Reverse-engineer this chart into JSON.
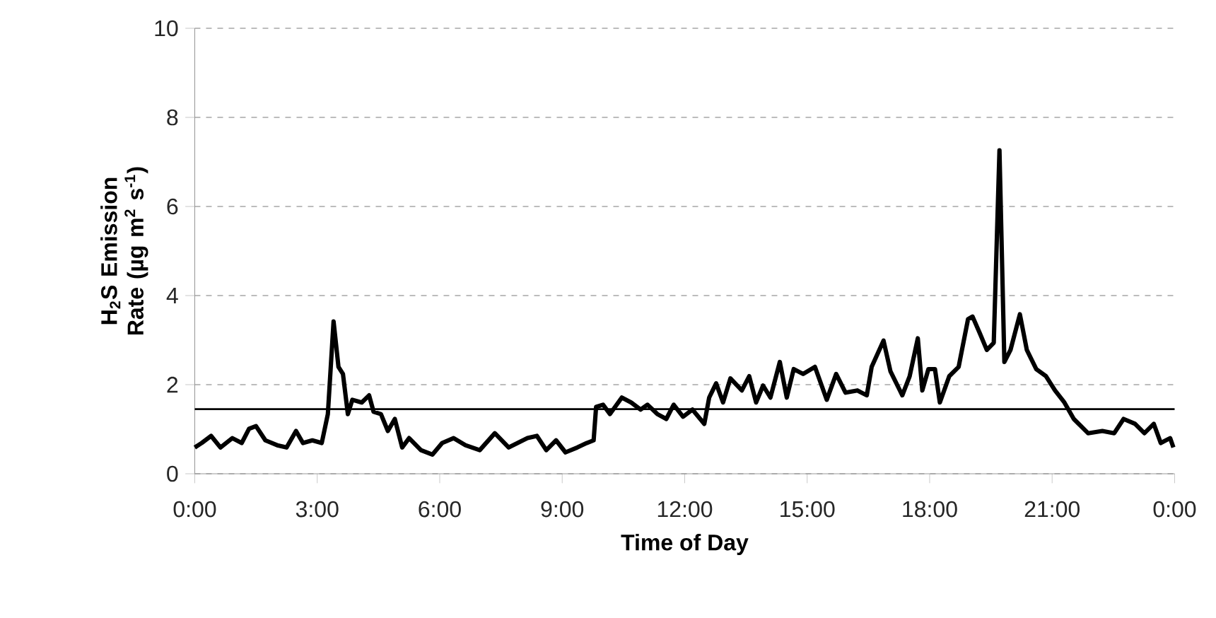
{
  "chart_data": {
    "type": "line",
    "xlabel": "Time of Day",
    "ylabel": "H$_{2}$S Emission Rate (µg m$^{2}$ s$^{-1}$)",
    "xlim": [
      0,
      24
    ],
    "ylim": [
      0,
      10
    ],
    "xticks": [
      {
        "value": 0,
        "label": "0:00"
      },
      {
        "value": 3,
        "label": "3:00"
      },
      {
        "value": 6,
        "label": "6:00"
      },
      {
        "value": 9,
        "label": "9:00"
      },
      {
        "value": 12,
        "label": "12:00"
      },
      {
        "value": 15,
        "label": "15:00"
      },
      {
        "value": 18,
        "label": "18:00"
      },
      {
        "value": 21,
        "label": "21:00"
      },
      {
        "value": 24,
        "label": "0:00"
      }
    ],
    "yticks": [
      0,
      2,
      4,
      6,
      8,
      10
    ],
    "grid": "y",
    "marker": "none",
    "line_style": "solid",
    "ref_lines": [
      {
        "axis": "y",
        "value": 1.45,
        "color": "#000000"
      }
    ],
    "series": [
      {
        "color": "#000000",
        "x": [
          0,
          0.17,
          0.4,
          0.63,
          0.92,
          1.15,
          1.33,
          1.5,
          1.73,
          2.02,
          2.25,
          2.48,
          2.65,
          2.88,
          3.11,
          3.26,
          3.4,
          3.52,
          3.63,
          3.75,
          3.86,
          4.09,
          4.27,
          4.38,
          4.56,
          4.73,
          4.9,
          5.08,
          5.25,
          5.54,
          5.82,
          6.06,
          6.34,
          6.63,
          6.98,
          7.35,
          7.69,
          8.15,
          8.38,
          8.61,
          8.85,
          9.08,
          9.37,
          9.6,
          9.77,
          9.83,
          10.0,
          10.17,
          10.46,
          10.69,
          10.92,
          11.09,
          11.33,
          11.55,
          11.73,
          11.96,
          12.19,
          12.48,
          12.6,
          12.77,
          12.94,
          13.12,
          13.4,
          13.58,
          13.75,
          13.92,
          14.1,
          14.33,
          14.5,
          14.67,
          14.9,
          15.19,
          15.48,
          15.71,
          15.94,
          16.23,
          16.46,
          16.58,
          16.87,
          17.04,
          17.33,
          17.51,
          17.71,
          17.82,
          17.97,
          18.13,
          18.25,
          18.48,
          18.71,
          18.94,
          19.05,
          19.23,
          19.4,
          19.57,
          19.71,
          19.83,
          19.98,
          20.21,
          20.38,
          20.61,
          20.85,
          21.07,
          21.3,
          21.53,
          21.88,
          22.23,
          22.52,
          22.75,
          23.03,
          23.26,
          23.49,
          23.66,
          23.89,
          23.97
        ],
        "values": [
          0.59,
          0.69,
          0.85,
          0.59,
          0.8,
          0.69,
          1.01,
          1.07,
          0.75,
          0.64,
          0.59,
          0.96,
          0.69,
          0.75,
          0.69,
          1.34,
          3.42,
          2.4,
          2.24,
          1.34,
          1.66,
          1.6,
          1.76,
          1.39,
          1.34,
          0.96,
          1.23,
          0.59,
          0.8,
          0.53,
          0.43,
          0.69,
          0.8,
          0.64,
          0.53,
          0.91,
          0.59,
          0.8,
          0.85,
          0.53,
          0.75,
          0.48,
          0.59,
          0.69,
          0.75,
          1.5,
          1.55,
          1.34,
          1.71,
          1.6,
          1.44,
          1.55,
          1.34,
          1.23,
          1.55,
          1.28,
          1.44,
          1.12,
          1.71,
          2.03,
          1.6,
          2.14,
          1.87,
          2.19,
          1.6,
          1.98,
          1.71,
          2.51,
          1.71,
          2.35,
          2.24,
          2.4,
          1.66,
          2.24,
          1.82,
          1.87,
          1.76,
          2.4,
          2.99,
          2.3,
          1.76,
          2.19,
          3.04,
          1.87,
          2.35,
          2.35,
          1.6,
          2.19,
          2.4,
          3.47,
          3.53,
          3.15,
          2.78,
          2.94,
          7.26,
          2.51,
          2.78,
          3.58,
          2.78,
          2.35,
          2.19,
          1.87,
          1.6,
          1.23,
          0.91,
          0.96,
          0.91,
          1.23,
          1.12,
          0.91,
          1.12,
          0.69,
          0.8,
          0.59
        ]
      }
    ]
  }
}
